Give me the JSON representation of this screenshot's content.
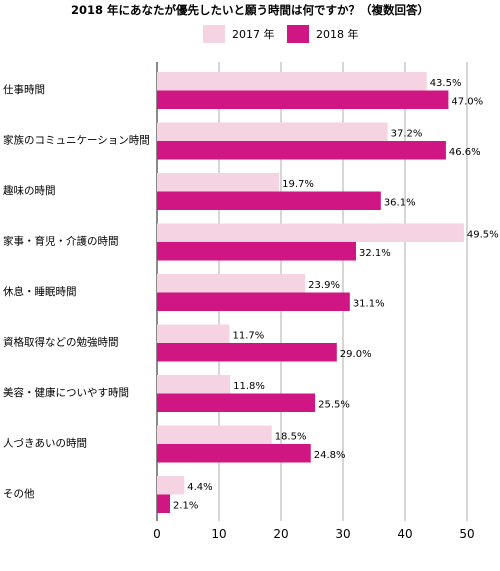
{
  "chart_data": {
    "type": "bar",
    "orientation": "horizontal",
    "title": "2018 年にあなたが優先したいと願う時間は何ですか？（複数回答）",
    "categories": [
      "仕事時間",
      "家族のコミュニケーション時間",
      "趣味の時間",
      "家事・育児・介護の時間",
      "休息・睡眠時間",
      "資格取得などの勉強時間",
      "美容・健康についやす時間",
      "人づきあいの時間",
      "その他"
    ],
    "series": [
      {
        "name": "2017 年",
        "color": "#f5d3e2",
        "values": [
          43.5,
          37.2,
          19.7,
          49.5,
          23.9,
          11.7,
          11.8,
          18.5,
          4.4
        ],
        "labels": [
          "43.5%",
          "37.2%",
          "19.7%",
          "49.5%",
          "23.9%",
          "11.7%",
          "11.8%",
          "18.5%",
          "4.4%"
        ]
      },
      {
        "name": "2018 年",
        "color": "#cf1682",
        "values": [
          47.0,
          46.6,
          36.1,
          32.1,
          31.1,
          29.0,
          25.5,
          24.8,
          2.1
        ],
        "labels": [
          "47.0%",
          "46.6%",
          "36.1%",
          "32.1%",
          "31.1%",
          "29.0%",
          "25.5%",
          "24.8%",
          "2.1%"
        ]
      }
    ],
    "xlim": [
      0,
      55
    ],
    "xticks": [
      0,
      10,
      20,
      30,
      40,
      50
    ],
    "xtick_labels": [
      "0",
      "10",
      "20",
      "30",
      "40",
      "50"
    ],
    "grid": true,
    "legend_position": "top"
  }
}
